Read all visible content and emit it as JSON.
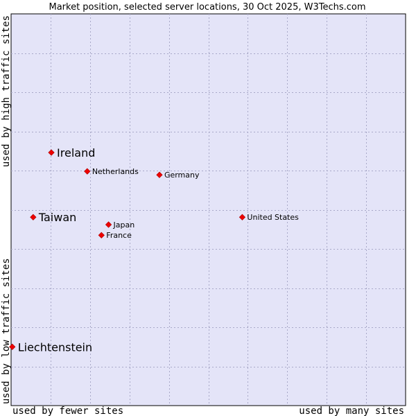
{
  "chart_data": {
    "type": "scatter",
    "title": "Market position, selected server locations, 30 Oct 2025, W3Techs.com",
    "xlabel_low": "used by fewer sites",
    "xlabel_high": "used by many sites",
    "ylabel_low": "used by low traffic sites",
    "ylabel_high": "used by high traffic sites",
    "xlim": [
      0,
      100
    ],
    "ylim": [
      0,
      100
    ],
    "grid": true,
    "background_color": "#e4e4f8",
    "marker_color": "#ee0000",
    "points": [
      {
        "name": "Ireland",
        "x": 10.2,
        "y": 64.6,
        "emphasis": true
      },
      {
        "name": "Netherlands",
        "x": 19.3,
        "y": 59.8,
        "emphasis": false
      },
      {
        "name": "Germany",
        "x": 37.6,
        "y": 58.9,
        "emphasis": false
      },
      {
        "name": "Taiwan",
        "x": 5.6,
        "y": 48.1,
        "emphasis": true
      },
      {
        "name": "United States",
        "x": 58.6,
        "y": 48.1,
        "emphasis": false
      },
      {
        "name": "Japan",
        "x": 24.7,
        "y": 46.2,
        "emphasis": false
      },
      {
        "name": "France",
        "x": 22.9,
        "y": 43.5,
        "emphasis": false
      },
      {
        "name": "Liechtenstein",
        "x": 0.3,
        "y": 15.0,
        "emphasis": true
      }
    ]
  }
}
